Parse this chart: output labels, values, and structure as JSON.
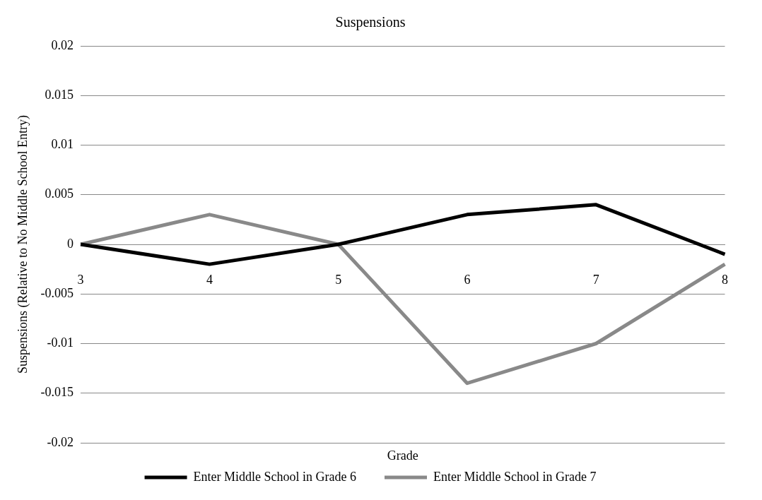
{
  "chart_data": {
    "type": "line",
    "title": "Suspensions",
    "xlabel": "Grade",
    "ylabel": "Suspensions (Relative to No Middle School Entry)",
    "categories": [
      "3",
      "4",
      "5",
      "6",
      "7",
      "8"
    ],
    "series": [
      {
        "name": "Enter Middle School in Grade 6",
        "color": "#000000",
        "values": [
          0,
          -0.002,
          0,
          0.003,
          0.004,
          -0.001
        ]
      },
      {
        "name": "Enter Middle School in Grade 7",
        "color": "#898989",
        "values": [
          0,
          0.003,
          0,
          -0.014,
          -0.01,
          -0.002
        ]
      }
    ],
    "ylim": [
      -0.02,
      0.02
    ],
    "yticks": [
      -0.02,
      -0.015,
      -0.01,
      -0.005,
      0,
      0.005,
      0.01,
      0.015,
      0.02
    ],
    "grid": "y",
    "legend": "bottom",
    "marker": "none",
    "line_style": "solid"
  }
}
